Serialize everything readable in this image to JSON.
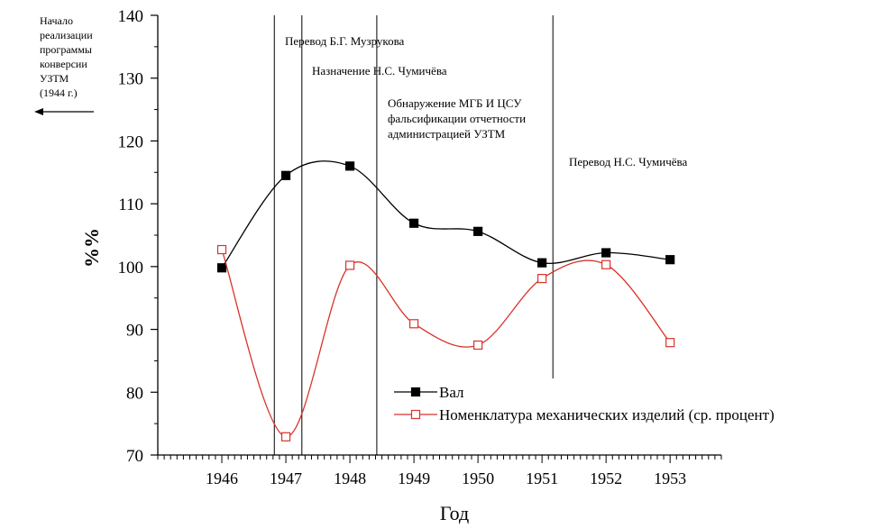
{
  "chart_data": {
    "type": "line",
    "x": [
      1946,
      1947,
      1948,
      1949,
      1950,
      1951,
      1952,
      1953
    ],
    "series": [
      {
        "name": "Вал",
        "color": "#000000",
        "marker": "filled-square",
        "values": [
          99.8,
          114.5,
          116.0,
          106.9,
          105.6,
          100.6,
          102.2,
          101.1
        ]
      },
      {
        "name": "Номенклатура механических изделий (ср. процент)",
        "color": "#d8332a",
        "marker": "open-square",
        "values": [
          102.7,
          72.9,
          100.2,
          90.9,
          87.5,
          98.1,
          100.3,
          87.9
        ]
      }
    ],
    "xlim": [
      1945,
      1953.8
    ],
    "ylim": [
      70,
      140
    ],
    "yticks": [
      70,
      80,
      90,
      100,
      110,
      120,
      130,
      140
    ],
    "xlabel": "Год",
    "ylabel": "%%",
    "legend_position": "bottom-right",
    "event_lines": [
      {
        "year": 1946.82,
        "label": ""
      },
      {
        "year": 1947.25,
        "label": ""
      },
      {
        "year": 1948.42,
        "label": ""
      },
      {
        "year": 1951.17,
        "label": ""
      }
    ],
    "annotations": [
      {
        "id": "muzrukov",
        "lines": [
          "Перевод Б.Г. Музрукова"
        ]
      },
      {
        "id": "chumichev-appoint",
        "lines": [
          "Назначение Н.С. Чумичёва"
        ]
      },
      {
        "id": "mgb",
        "lines": [
          "Обнаружение МГБ И ЦСУ",
          "фальсификации отчетности",
          "администрацией УЗТМ"
        ]
      },
      {
        "id": "chumichev-transfer",
        "lines": [
          "Перевод Н.С. Чумичёва"
        ]
      }
    ],
    "side_note": [
      "Начало",
      "реализации",
      "программы",
      "конверсии",
      "УЗТМ",
      "(1944 г.)"
    ]
  }
}
